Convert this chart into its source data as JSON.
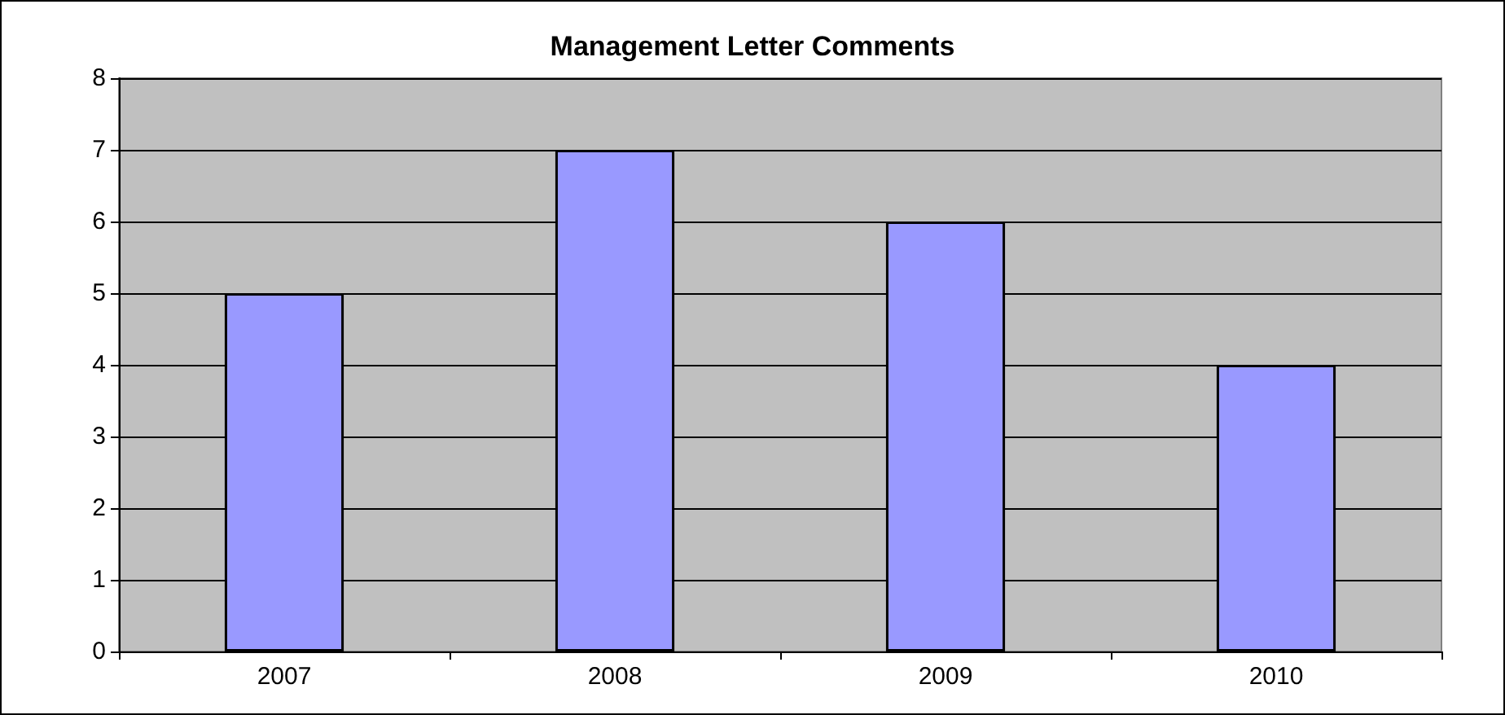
{
  "chart_data": {
    "type": "bar",
    "title": "Management Letter Comments",
    "categories": [
      "2007",
      "2008",
      "2009",
      "2010"
    ],
    "values": [
      5,
      7,
      6,
      4
    ],
    "color": "#9999ff",
    "ylim": [
      0,
      8
    ],
    "yticks": [
      0,
      1,
      2,
      3,
      4,
      5,
      6,
      7,
      8
    ],
    "grid": "y"
  }
}
